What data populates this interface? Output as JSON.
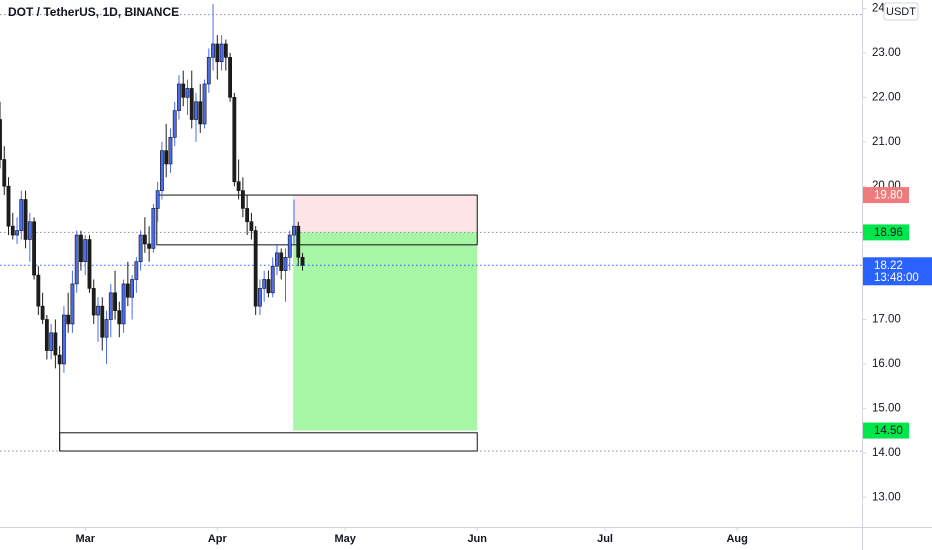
{
  "chart_data": {
    "type": "candlestick",
    "title": "DOT / TetherUS, 1D, BINANCE",
    "currency": "USDT",
    "up_color": "#4a6cf0",
    "down_color": "#1e1e1e",
    "open": [
      21.5,
      20.6,
      20.0,
      19.1,
      18.9,
      19.0,
      19.7,
      18.8,
      19.2,
      18.0,
      17.3,
      17.0,
      16.3,
      16.7,
      16.2,
      16.0,
      17.1,
      16.9,
      17.8,
      18.9,
      18.3,
      18.8,
      17.7,
      17.1,
      17.3,
      16.6,
      17.0,
      17.6,
      17.2,
      16.9,
      17.8,
      17.5,
      17.9,
      18.3,
      18.9,
      18.7,
      18.6,
      19.5,
      19.9,
      20.8,
      20.5,
      21.1,
      21.7,
      22.3,
      22.0,
      22.2,
      21.5,
      21.9,
      21.4,
      22.3,
      22.9,
      23.2,
      22.8,
      23.2,
      22.9,
      22.0,
      20.1,
      19.9,
      19.5,
      19.2,
      19.0,
      17.3,
      17.7,
      17.9,
      17.6,
      18.2,
      18.5,
      18.1,
      18.4,
      18.9,
      19.1,
      18.4
    ],
    "high": [
      21.9,
      20.9,
      20.2,
      19.4,
      19.3,
      19.9,
      19.9,
      19.4,
      19.3,
      18.2,
      17.6,
      17.1,
      16.9,
      17.0,
      16.4,
      17.3,
      17.6,
      18.1,
      19.0,
      19.0,
      18.9,
      18.9,
      17.9,
      17.5,
      17.5,
      17.2,
      17.8,
      18.1,
      17.4,
      17.9,
      18.3,
      18.0,
      18.4,
      19.0,
      19.3,
      19.1,
      19.6,
      20.1,
      21.0,
      21.4,
      21.3,
      21.9,
      22.5,
      22.6,
      22.4,
      22.6,
      22.1,
      22.3,
      22.4,
      23.1,
      24.1,
      23.4,
      23.4,
      23.3,
      23.0,
      22.1,
      20.6,
      20.2,
      19.8,
      19.4,
      19.1,
      17.9,
      18.1,
      18.1,
      18.4,
      18.7,
      18.6,
      18.6,
      19.0,
      19.7,
      19.2,
      18.5
    ],
    "low": [
      20.4,
      19.8,
      18.9,
      18.8,
      18.7,
      18.8,
      18.6,
      18.3,
      17.9,
      17.1,
      16.9,
      16.1,
      16.1,
      15.9,
      14.04,
      15.8,
      16.7,
      16.7,
      17.6,
      18.1,
      18.0,
      17.6,
      16.9,
      16.5,
      16.3,
      16.0,
      16.6,
      17.0,
      16.6,
      16.7,
      17.3,
      17.0,
      17.6,
      18.1,
      18.5,
      18.3,
      18.5,
      19.2,
      19.7,
      20.2,
      20.3,
      20.9,
      21.5,
      21.8,
      21.6,
      21.3,
      21.0,
      21.2,
      21.3,
      22.1,
      22.6,
      22.4,
      22.6,
      22.6,
      21.9,
      20.0,
      19.7,
      19.3,
      18.9,
      18.8,
      17.1,
      17.1,
      17.4,
      17.5,
      17.5,
      18.0,
      17.9,
      17.4,
      18.1,
      18.7,
      18.2,
      18.1
    ],
    "close": [
      20.6,
      20.0,
      19.1,
      18.9,
      19.0,
      19.7,
      18.8,
      19.2,
      18.0,
      17.3,
      17.0,
      16.3,
      16.7,
      16.2,
      16.0,
      17.1,
      16.9,
      17.8,
      18.9,
      18.3,
      18.8,
      17.7,
      17.1,
      17.3,
      16.6,
      17.0,
      17.6,
      17.2,
      16.9,
      17.8,
      17.5,
      17.9,
      18.3,
      18.9,
      18.7,
      18.6,
      19.5,
      19.9,
      20.8,
      20.5,
      21.1,
      21.7,
      22.3,
      22.0,
      22.2,
      21.5,
      21.9,
      21.4,
      22.3,
      22.9,
      23.2,
      22.8,
      23.2,
      22.9,
      22.0,
      20.1,
      19.9,
      19.5,
      19.2,
      19.0,
      17.3,
      17.7,
      17.9,
      17.6,
      18.2,
      18.5,
      18.1,
      18.4,
      18.9,
      19.1,
      18.4,
      18.22
    ],
    "xlim": [
      0,
      202.3
    ],
    "xticks": [
      {
        "value": 20,
        "label": "Mar"
      },
      {
        "value": 51,
        "label": "Apr"
      },
      {
        "value": 81,
        "label": "May"
      },
      {
        "value": 112,
        "label": "Jun"
      },
      {
        "value": 142,
        "label": "Jul"
      },
      {
        "value": 173,
        "label": "Aug"
      }
    ],
    "ylim": [
      12.33,
      24.19
    ],
    "yticks": [
      {
        "value": 13,
        "label": "13.00"
      },
      {
        "value": 14,
        "label": "14.00"
      },
      {
        "value": 15,
        "label": "15.00"
      },
      {
        "value": 16,
        "label": "16.00"
      },
      {
        "value": 17,
        "label": "17.00"
      },
      {
        "value": 18,
        "label": "18.00"
      },
      {
        "value": 19,
        "label": "19.00"
      },
      {
        "value": 20,
        "label": "20.00"
      },
      {
        "value": 21,
        "label": "21.00"
      },
      {
        "value": 22,
        "label": "22.00"
      },
      {
        "value": 23,
        "label": "23.00"
      },
      {
        "value": 24,
        "label": "24.00"
      }
    ],
    "dotted_lines": [
      23.86,
      18.96,
      18.22,
      14.04
    ],
    "boxes": [
      {
        "x": [
          36.8,
          112
        ],
        "y": [
          18.68,
          19.8
        ]
      },
      {
        "x": [
          14,
          112
        ],
        "y": [
          14.04,
          14.45
        ]
      }
    ],
    "position": {
      "x": [
        68.8,
        112
      ],
      "stop": {
        "value": 19.8,
        "label": "19.80"
      },
      "entry": {
        "value": 18.96,
        "label": "18.96"
      },
      "target": {
        "value": 14.5,
        "label": "14.50"
      }
    },
    "last_price": {
      "value": 18.22,
      "label": "18.22",
      "countdown": "13:48:00"
    }
  }
}
